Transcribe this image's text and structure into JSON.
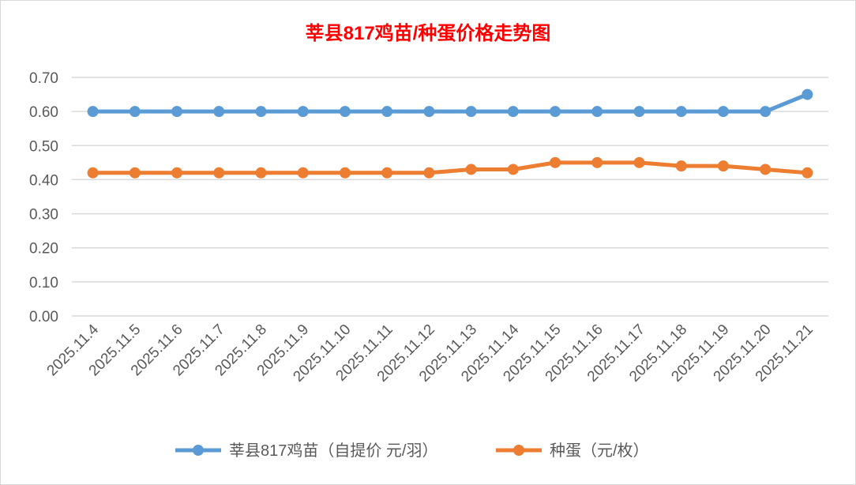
{
  "chart_data": {
    "type": "line",
    "title": "莘县817鸡苗/种蛋价格走势图",
    "xlabel": "",
    "ylabel": "",
    "ylim": [
      0,
      0.7
    ],
    "yticks": [
      "0.00",
      "0.10",
      "0.20",
      "0.30",
      "0.40",
      "0.50",
      "0.60",
      "0.70"
    ],
    "grid": true,
    "legend_position": "bottom",
    "categories": [
      "2025.11.4",
      "2025.11.5",
      "2025.11.6",
      "2025.11.7",
      "2025.11.8",
      "2025.11.9",
      "2025.11.10",
      "2025.11.11",
      "2025.11.12",
      "2025.11.13",
      "2025.11.14",
      "2025.11.15",
      "2025.11.16",
      "2025.11.17",
      "2025.11.18",
      "2025.11.19",
      "2025.11.20",
      "2025.11.21"
    ],
    "series": [
      {
        "name": "莘县817鸡苗（自提价 元/羽）",
        "color": "#5B9BD5",
        "values": [
          0.6,
          0.6,
          0.6,
          0.6,
          0.6,
          0.6,
          0.6,
          0.6,
          0.6,
          0.6,
          0.6,
          0.6,
          0.6,
          0.6,
          0.6,
          0.6,
          0.6,
          0.65
        ]
      },
      {
        "name": "种蛋（元/枚）",
        "color": "#ED7D31",
        "values": [
          0.42,
          0.42,
          0.42,
          0.42,
          0.42,
          0.42,
          0.42,
          0.42,
          0.42,
          0.43,
          0.43,
          0.45,
          0.45,
          0.45,
          0.44,
          0.44,
          0.43,
          0.42
        ]
      }
    ]
  }
}
